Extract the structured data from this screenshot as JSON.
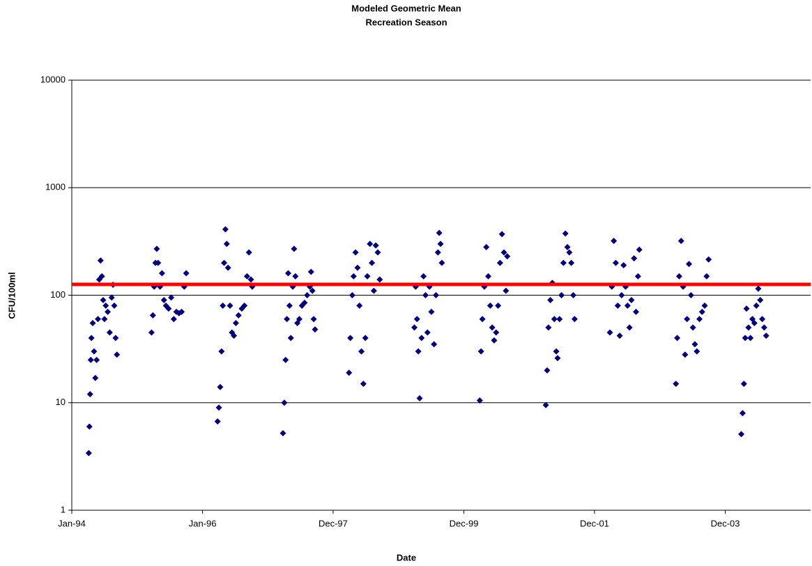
{
  "chart_data": {
    "type": "scatter",
    "title": "Modeled Geometric Mean",
    "subtitle": "Recreation Season",
    "x_label": "Date",
    "y_label": "CFU/100ml",
    "y_log": true,
    "grid": true,
    "xlim": [
      1994,
      2005.3
    ],
    "xticks": [
      {
        "value": 1994,
        "label": "Jan-94"
      },
      {
        "value": 1996,
        "label": "Jan-96"
      },
      {
        "value": 1997.997,
        "label": "Dec-97"
      },
      {
        "value": 1999.997,
        "label": "Dec-99"
      },
      {
        "value": 2001.995,
        "label": "Dec-01"
      },
      {
        "value": 2003.995,
        "label": "Dec-03"
      }
    ],
    "ylim": [
      1,
      10000
    ],
    "yticks": [
      1,
      10,
      100,
      1000,
      10000
    ],
    "threshold": {
      "value": 126,
      "color": "#ff0000"
    },
    "series": [
      {
        "color": "#000080",
        "x": [
          1994.26,
          1994.27,
          1994.28,
          1994.29,
          1994.3,
          1994.32,
          1994.34,
          1994.36,
          1994.38,
          1994.4,
          1994.42,
          1994.44,
          1994.46,
          1994.48,
          1994.5,
          1994.52,
          1994.55,
          1994.58,
          1994.61,
          1994.63,
          1994.65,
          1994.67,
          1994.69,
          1995.22,
          1995.24,
          1995.26,
          1995.28,
          1995.3,
          1995.32,
          1995.35,
          1995.38,
          1995.41,
          1995.44,
          1995.48,
          1995.52,
          1995.56,
          1995.6,
          1995.64,
          1995.68,
          1995.72,
          1995.75,
          1996.23,
          1996.25,
          1996.27,
          1996.29,
          1996.31,
          1996.33,
          1996.35,
          1996.37,
          1996.39,
          1996.42,
          1996.45,
          1996.48,
          1996.51,
          1996.55,
          1996.6,
          1996.64,
          1996.68,
          1996.71,
          1996.74,
          1996.76,
          1997.23,
          1997.25,
          1997.27,
          1997.29,
          1997.31,
          1997.33,
          1997.35,
          1997.38,
          1997.4,
          1997.42,
          1997.45,
          1997.48,
          1997.52,
          1997.56,
          1997.6,
          1997.64,
          1997.66,
          1997.68,
          1997.7,
          1997.72,
          1998.24,
          1998.26,
          1998.29,
          1998.31,
          1998.34,
          1998.37,
          1998.4,
          1998.43,
          1998.46,
          1998.49,
          1998.52,
          1998.56,
          1998.59,
          1998.62,
          1998.65,
          1998.68,
          1998.71,
          1999.24,
          1999.26,
          1999.28,
          1999.3,
          1999.32,
          1999.35,
          1999.38,
          1999.41,
          1999.44,
          1999.47,
          1999.5,
          1999.54,
          1999.57,
          1999.6,
          1999.62,
          1999.64,
          1999.66,
          2000.24,
          2000.26,
          2000.28,
          2000.31,
          2000.34,
          2000.37,
          2000.4,
          2000.43,
          2000.46,
          2000.49,
          2000.52,
          2000.55,
          2000.58,
          2000.61,
          2000.64,
          2000.66,
          2001.25,
          2001.27,
          2001.29,
          2001.32,
          2001.35,
          2001.38,
          2001.41,
          2001.43,
          2001.46,
          2001.49,
          2001.52,
          2001.55,
          2001.58,
          2001.61,
          2001.64,
          2001.67,
          2001.69,
          2002.23,
          2002.26,
          2002.29,
          2002.32,
          2002.35,
          2002.38,
          2002.41,
          2002.44,
          2002.47,
          2002.5,
          2002.53,
          2002.56,
          2002.6,
          2002.63,
          2002.66,
          2002.68,
          2003.24,
          2003.26,
          2003.29,
          2003.32,
          2003.35,
          2003.38,
          2003.41,
          2003.44,
          2003.47,
          2003.5,
          2003.53,
          2003.56,
          2003.6,
          2003.64,
          2003.68,
          2003.71,
          2003.74,
          2004.24,
          2004.26,
          2004.28,
          2004.3,
          2004.32,
          2004.35,
          2004.38,
          2004.41,
          2004.44,
          2004.47,
          2004.5,
          2004.53,
          2004.56,
          2004.59,
          2004.62
        ],
        "values": [
          3.4,
          6,
          12,
          25,
          40,
          55,
          30,
          17,
          25,
          60,
          140,
          210,
          150,
          90,
          60,
          80,
          70,
          45,
          95,
          125,
          80,
          40,
          28,
          45,
          65,
          120,
          200,
          270,
          200,
          120,
          160,
          90,
          80,
          75,
          95,
          60,
          70,
          68,
          70,
          120,
          160,
          6.7,
          9,
          14,
          30,
          80,
          200,
          410,
          300,
          180,
          80,
          45,
          42,
          55,
          65,
          75,
          80,
          150,
          250,
          140,
          120,
          5.2,
          10,
          25,
          60,
          160,
          80,
          40,
          120,
          270,
          150,
          55,
          60,
          80,
          85,
          100,
          120,
          165,
          110,
          60,
          48,
          19,
          40,
          100,
          150,
          250,
          180,
          80,
          30,
          15,
          40,
          150,
          300,
          200,
          110,
          290,
          250,
          140,
          50,
          120,
          60,
          30,
          11,
          40,
          150,
          100,
          45,
          120,
          70,
          35,
          100,
          250,
          380,
          300,
          200,
          10.5,
          30,
          60,
          120,
          280,
          150,
          80,
          50,
          38,
          45,
          80,
          200,
          370,
          250,
          110,
          230,
          9.5,
          20,
          50,
          90,
          130,
          60,
          30,
          26,
          60,
          100,
          200,
          375,
          280,
          250,
          200,
          100,
          60,
          45,
          120,
          320,
          200,
          80,
          42,
          100,
          190,
          120,
          80,
          50,
          90,
          220,
          70,
          150,
          265,
          15,
          40,
          150,
          320,
          120,
          28,
          60,
          195,
          100,
          50,
          35,
          30,
          60,
          70,
          80,
          150,
          215,
          5.1,
          8,
          15,
          40,
          75,
          50,
          40,
          60,
          55,
          80,
          115,
          90,
          60,
          50,
          42
        ]
      }
    ]
  }
}
